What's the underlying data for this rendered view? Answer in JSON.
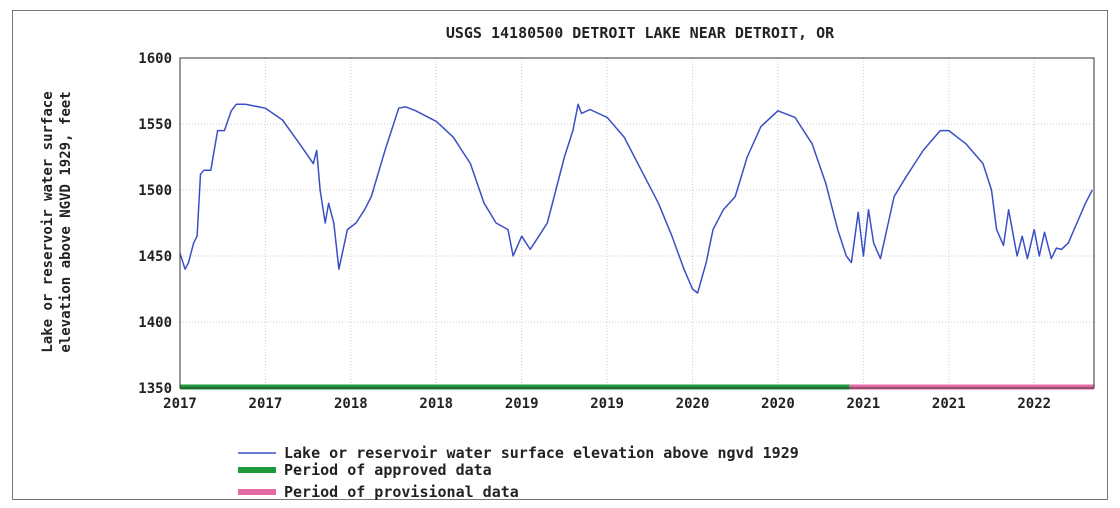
{
  "chart_data": {
    "type": "line",
    "title": "USGS 14180500 DETROIT LAKE NEAR DETROIT, OR",
    "ylabel_lines": [
      "Lake or reservoir water surface",
      "elevation above NGVD 1929, feet"
    ],
    "xlabel": "",
    "ylim": [
      1350,
      1600
    ],
    "yticks": [
      "1600",
      "1550",
      "1500",
      "1450",
      "1400",
      "1350"
    ],
    "yticks_values": [
      1600,
      1550,
      1500,
      1450,
      1400,
      1350
    ],
    "xlim": [
      2017.0,
      2022.35
    ],
    "xticks": [
      "2017",
      "2017",
      "2018",
      "2018",
      "2019",
      "2019",
      "2020",
      "2020",
      "2021",
      "2021",
      "2022"
    ],
    "xticks_values": [
      2017.0,
      2017.5,
      2018.0,
      2018.5,
      2019.0,
      2019.5,
      2020.0,
      2020.5,
      2021.0,
      2021.5,
      2022.0
    ],
    "grid": true,
    "legend_position": "bottom",
    "series": [
      {
        "name": "Lake or reservoir water surface elevation above ngvd 1929",
        "color": "#3b4fc4",
        "x": [
          2017.0,
          2017.03,
          2017.05,
          2017.08,
          2017.1,
          2017.12,
          2017.14,
          2017.18,
          2017.2,
          2017.22,
          2017.26,
          2017.3,
          2017.33,
          2017.38,
          2017.42,
          2017.5,
          2017.6,
          2017.7,
          2017.78,
          2017.8,
          2017.82,
          2017.85,
          2017.87,
          2017.9,
          2017.93,
          2017.96,
          2017.98,
          2018.03,
          2018.08,
          2018.12,
          2018.2,
          2018.28,
          2018.32,
          2018.38,
          2018.5,
          2018.6,
          2018.7,
          2018.78,
          2018.85,
          2018.92,
          2018.95,
          2019.0,
          2019.05,
          2019.1,
          2019.15,
          2019.25,
          2019.3,
          2019.33,
          2019.35,
          2019.4,
          2019.5,
          2019.6,
          2019.7,
          2019.8,
          2019.88,
          2019.95,
          2020.0,
          2020.03,
          2020.08,
          2020.12,
          2020.18,
          2020.25,
          2020.32,
          2020.4,
          2020.5,
          2020.6,
          2020.7,
          2020.78,
          2020.85,
          2020.9,
          2020.93,
          2020.97,
          2021.0,
          2021.03,
          2021.06,
          2021.1,
          2021.12,
          2021.18,
          2021.25,
          2021.35,
          2021.45,
          2021.5,
          2021.6,
          2021.7,
          2021.75,
          2021.78,
          2021.82,
          2021.85,
          2021.9,
          2021.93,
          2021.96,
          2022.0,
          2022.03,
          2022.06,
          2022.1,
          2022.13,
          2022.16,
          2022.2,
          2022.25,
          2022.3,
          2022.34
        ],
        "y": [
          1452,
          1440,
          1445,
          1460,
          1465,
          1512,
          1515,
          1515,
          1530,
          1545,
          1545,
          1560,
          1565,
          1565,
          1564,
          1562,
          1553,
          1535,
          1520,
          1530,
          1500,
          1475,
          1490,
          1475,
          1440,
          1458,
          1470,
          1475,
          1485,
          1495,
          1530,
          1562,
          1563,
          1560,
          1552,
          1540,
          1520,
          1490,
          1475,
          1470,
          1450,
          1465,
          1455,
          1465,
          1475,
          1525,
          1545,
          1565,
          1558,
          1561,
          1555,
          1540,
          1515,
          1490,
          1465,
          1440,
          1425,
          1422,
          1445,
          1470,
          1485,
          1495,
          1525,
          1548,
          1560,
          1555,
          1535,
          1505,
          1470,
          1450,
          1445,
          1483,
          1450,
          1485,
          1460,
          1448,
          1460,
          1495,
          1510,
          1530,
          1545,
          1545,
          1535,
          1520,
          1500,
          1470,
          1458,
          1485,
          1450,
          1465,
          1448,
          1470,
          1450,
          1468,
          1448,
          1456,
          1455,
          1460,
          1475,
          1490,
          1500
        ]
      },
      {
        "name": "Period of approved data",
        "color": "#1f9a3a",
        "x": [
          2017.0,
          2020.92
        ],
        "y": [
          1350,
          1350
        ]
      },
      {
        "name": "Period of provisional data",
        "color": "#e86aa4",
        "x": [
          2020.92,
          2022.35
        ],
        "y": [
          1350,
          1350
        ]
      }
    ]
  }
}
